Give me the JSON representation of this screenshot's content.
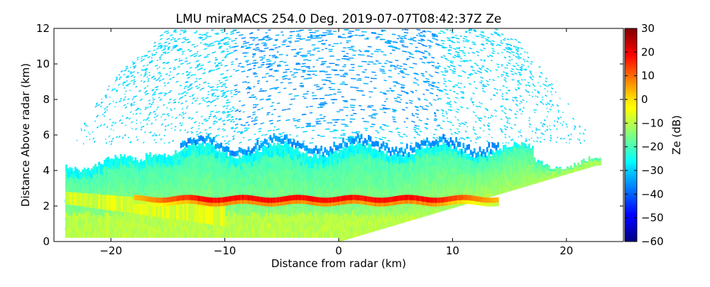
{
  "chart_data": {
    "type": "heatmap",
    "title": "LMU miraMACS 254.0 Deg. 2019-07-07T08:42:37Z  Ze",
    "xlabel": "Distance from radar (km)",
    "ylabel": "Distance Above radar  (km)",
    "xlim": [
      -25,
      25
    ],
    "ylim": [
      0,
      12
    ],
    "xticks": [
      -20,
      -10,
      0,
      10,
      20
    ],
    "xtick_labels": [
      "−20",
      "−10",
      "0",
      "10",
      "20"
    ],
    "yticks": [
      0,
      2,
      4,
      6,
      8,
      10,
      12
    ],
    "ytick_labels": [
      "0",
      "2",
      "4",
      "6",
      "8",
      "10",
      "12"
    ],
    "colorbar": {
      "label": "Ze (dB)",
      "range": [
        -60,
        30
      ],
      "ticks": [
        30,
        20,
        10,
        0,
        -10,
        -20,
        -30,
        -40,
        -50,
        -60
      ],
      "tick_labels": [
        "30",
        "20",
        "10",
        "0",
        "−10",
        "−20",
        "−30",
        "−40",
        "−50",
        "−60"
      ],
      "colormap": "jet"
    },
    "features": [
      {
        "name": "scan-sector-left-edge",
        "points_km": [
          [
            -24,
            3
          ],
          [
            -23,
            6
          ],
          [
            -20,
            9
          ],
          [
            -15,
            12
          ]
        ]
      },
      {
        "name": "scan-sector-right-edge",
        "points_km": [
          [
            15,
            12
          ],
          [
            20,
            8
          ],
          [
            23,
            5
          ],
          [
            24,
            4.4
          ]
        ]
      },
      {
        "name": "cloud-layer-main",
        "x_range_km": [
          -24,
          23
        ],
        "height_range_km": [
          0.2,
          5.6
        ],
        "typical_ze_db": -15
      },
      {
        "name": "bright-band",
        "x_range_km": [
          -18,
          14
        ],
        "height_km": 2.4,
        "peak_ze_db": 20
      },
      {
        "name": "noise-speckle",
        "height_range_km": [
          5.5,
          12
        ],
        "typical_ze_db": -30
      }
    ]
  }
}
